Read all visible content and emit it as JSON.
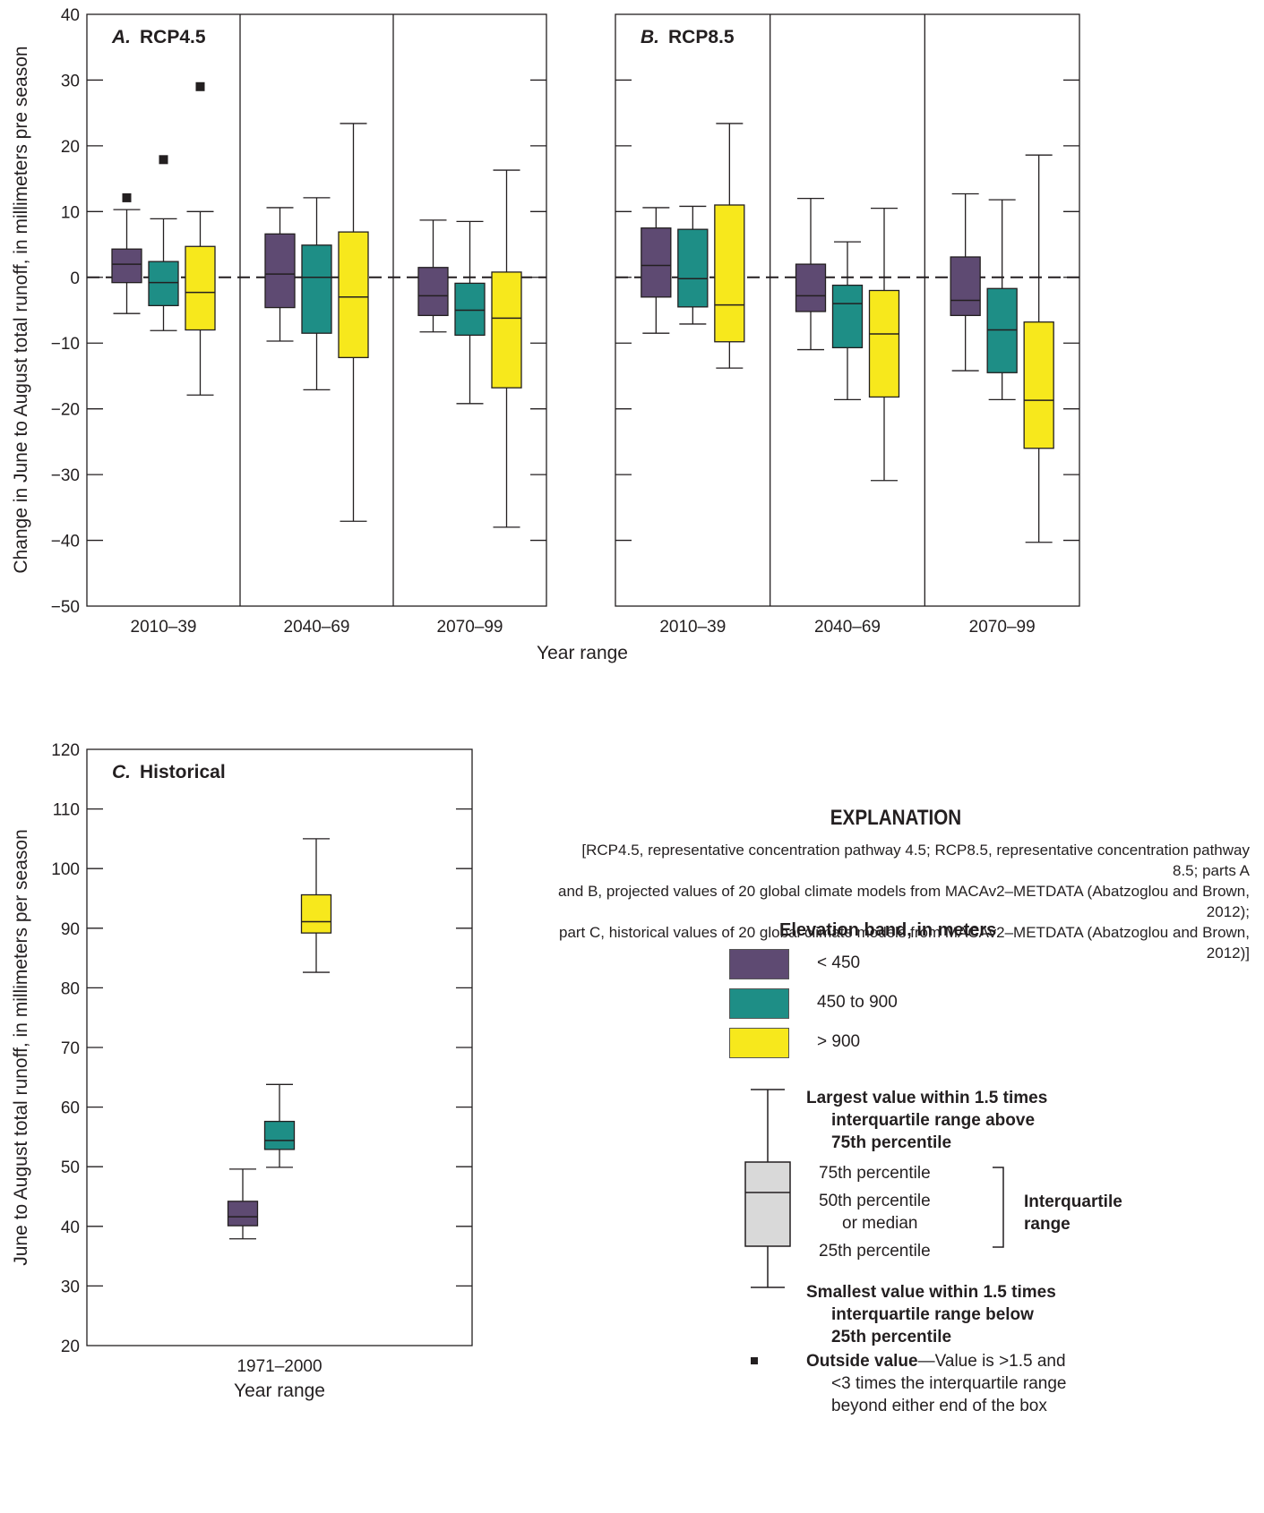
{
  "chart_data": [
    {
      "type": "box",
      "panel_label": "A.",
      "title": "RCP4.5",
      "xlabel": "Year range",
      "ylabel": "Change in June to August total runoff, in millimeters pre season",
      "ylim": [
        -50,
        40
      ],
      "yticks": [
        -50,
        -40,
        -30,
        -20,
        -10,
        0,
        10,
        20,
        30,
        40
      ],
      "categories": [
        "2010–39",
        "2040–69",
        "2070–99"
      ],
      "zero_line": true,
      "series": [
        {
          "band": "< 450",
          "color": "#5e4a72",
          "boxes": [
            {
              "whisker_low": -5.5,
              "q1": -0.8,
              "median": 2.0,
              "q3": 4.3,
              "whisker_high": 10.3,
              "outliers": [
                12.1
              ]
            },
            {
              "whisker_low": -9.7,
              "q1": -4.6,
              "median": 0.5,
              "q3": 6.6,
              "whisker_high": 10.6,
              "outliers": []
            },
            {
              "whisker_low": -8.3,
              "q1": -5.8,
              "median": -2.8,
              "q3": 1.5,
              "whisker_high": 8.7,
              "outliers": []
            }
          ]
        },
        {
          "band": "450 to 900",
          "color": "#1e8e86",
          "boxes": [
            {
              "whisker_low": -8.1,
              "q1": -4.3,
              "median": -0.8,
              "q3": 2.4,
              "whisker_high": 8.9,
              "outliers": [
                17.9
              ]
            },
            {
              "whisker_low": -17.1,
              "q1": -8.5,
              "median": 0.0,
              "q3": 4.9,
              "whisker_high": 12.1,
              "outliers": []
            },
            {
              "whisker_low": -19.2,
              "q1": -8.8,
              "median": -5.0,
              "q3": -0.9,
              "whisker_high": 8.5,
              "outliers": []
            }
          ]
        },
        {
          "band": "> 900",
          "color": "#f7e81c",
          "boxes": [
            {
              "whisker_low": -17.9,
              "q1": -8.0,
              "median": -2.3,
              "q3": 4.7,
              "whisker_high": 10.0,
              "outliers": [
                29.0
              ]
            },
            {
              "whisker_low": -37.1,
              "q1": -12.2,
              "median": -3.0,
              "q3": 6.9,
              "whisker_high": 23.4,
              "outliers": []
            },
            {
              "whisker_low": -38.0,
              "q1": -16.8,
              "median": -6.2,
              "q3": 0.8,
              "whisker_high": 16.3,
              "outliers": []
            }
          ]
        }
      ]
    },
    {
      "type": "box",
      "panel_label": "B.",
      "title": "RCP8.5",
      "xlabel": "Year range",
      "ylabel": "",
      "ylim": [
        -50,
        40
      ],
      "yticks": [
        -50,
        -40,
        -30,
        -20,
        -10,
        0,
        10,
        20,
        30,
        40
      ],
      "categories": [
        "2010–39",
        "2040–69",
        "2070–99"
      ],
      "zero_line": true,
      "series": [
        {
          "band": "< 450",
          "color": "#5e4a72",
          "boxes": [
            {
              "whisker_low": -8.5,
              "q1": -3.0,
              "median": 1.8,
              "q3": 7.5,
              "whisker_high": 10.6,
              "outliers": []
            },
            {
              "whisker_low": -11.0,
              "q1": -5.2,
              "median": -2.8,
              "q3": 2.0,
              "whisker_high": 12.0,
              "outliers": []
            },
            {
              "whisker_low": -14.2,
              "q1": -5.8,
              "median": -3.5,
              "q3": 3.1,
              "whisker_high": 12.7,
              "outliers": []
            }
          ]
        },
        {
          "band": "450 to 900",
          "color": "#1e8e86",
          "boxes": [
            {
              "whisker_low": -7.1,
              "q1": -4.5,
              "median": -0.2,
              "q3": 7.3,
              "whisker_high": 10.8,
              "outliers": []
            },
            {
              "whisker_low": -18.6,
              "q1": -10.7,
              "median": -4.0,
              "q3": -1.2,
              "whisker_high": 5.4,
              "outliers": []
            },
            {
              "whisker_low": -18.6,
              "q1": -14.5,
              "median": -8.0,
              "q3": -1.7,
              "whisker_high": 11.8,
              "outliers": []
            }
          ]
        },
        {
          "band": "> 900",
          "color": "#f7e81c",
          "boxes": [
            {
              "whisker_low": -13.8,
              "q1": -9.8,
              "median": -4.2,
              "q3": 11.0,
              "whisker_high": 23.4,
              "outliers": []
            },
            {
              "whisker_low": -30.9,
              "q1": -18.2,
              "median": -8.6,
              "q3": -2.0,
              "whisker_high": 10.5,
              "outliers": []
            },
            {
              "whisker_low": -40.3,
              "q1": -26.0,
              "median": -18.7,
              "q3": -6.8,
              "whisker_high": 18.6,
              "outliers": []
            }
          ]
        }
      ]
    },
    {
      "type": "box",
      "panel_label": "C.",
      "title": "Historical",
      "xlabel": "Year range",
      "ylabel": "June to August total runoff, in millimeters per season",
      "ylim": [
        20,
        120
      ],
      "yticks": [
        20,
        30,
        40,
        50,
        60,
        70,
        80,
        90,
        100,
        110,
        120
      ],
      "categories": [
        "1971–2000"
      ],
      "zero_line": false,
      "series": [
        {
          "band": "< 450",
          "color": "#5e4a72",
          "boxes": [
            {
              "whisker_low": 37.9,
              "q1": 40.1,
              "median": 41.6,
              "q3": 44.2,
              "whisker_high": 49.6,
              "outliers": []
            }
          ]
        },
        {
          "band": "450 to 900",
          "color": "#1e8e86",
          "boxes": [
            {
              "whisker_low": 49.9,
              "q1": 52.9,
              "median": 54.4,
              "q3": 57.6,
              "whisker_high": 63.8,
              "outliers": []
            }
          ]
        },
        {
          "band": "> 900",
          "color": "#f7e81c",
          "boxes": [
            {
              "whisker_low": 82.6,
              "q1": 89.2,
              "median": 91.1,
              "q3": 95.6,
              "whisker_high": 105.0,
              "outliers": []
            }
          ]
        }
      ]
    }
  ],
  "legend": {
    "heading": "EXPLANATION",
    "note_lines": [
      "[RCP4.5, representative concentration pathway 4.5; RCP8.5, representative concentration pathway 8.5; parts A",
      "and B, projected values of 20 global climate models from MACAv2–METDATA (Abatzoglou and Brown, 2012);",
      "part C, historical values of 20 global climate models from MACAv2–METDATA (Abatzoglou and Brown, 2012)]"
    ],
    "band_title": "Elevation band, in meters",
    "bands": [
      {
        "label": "< 450",
        "color": "#5e4a72"
      },
      {
        "label": "450 to 900",
        "color": "#1e8e86"
      },
      {
        "label": "> 900",
        "color": "#f7e81c"
      }
    ],
    "largest": [
      "Largest value within 1.5 times",
      "interquartile range above",
      "75th percentile"
    ],
    "p75": "75th percentile",
    "p50": [
      "50th percentile",
      "or median"
    ],
    "p25": "25th percentile",
    "iqr": [
      "Interquartile",
      "range"
    ],
    "smallest": [
      "Smallest value within 1.5 times",
      "interquartile range below",
      "25th percentile"
    ],
    "outside_bold": "Outside value",
    "outside_rest": "—Value is >1.5 and",
    "outside_lines": [
      "<3 times the interquartile range",
      "beyond either end of the box"
    ],
    "example_color": "#d9d9d9"
  }
}
